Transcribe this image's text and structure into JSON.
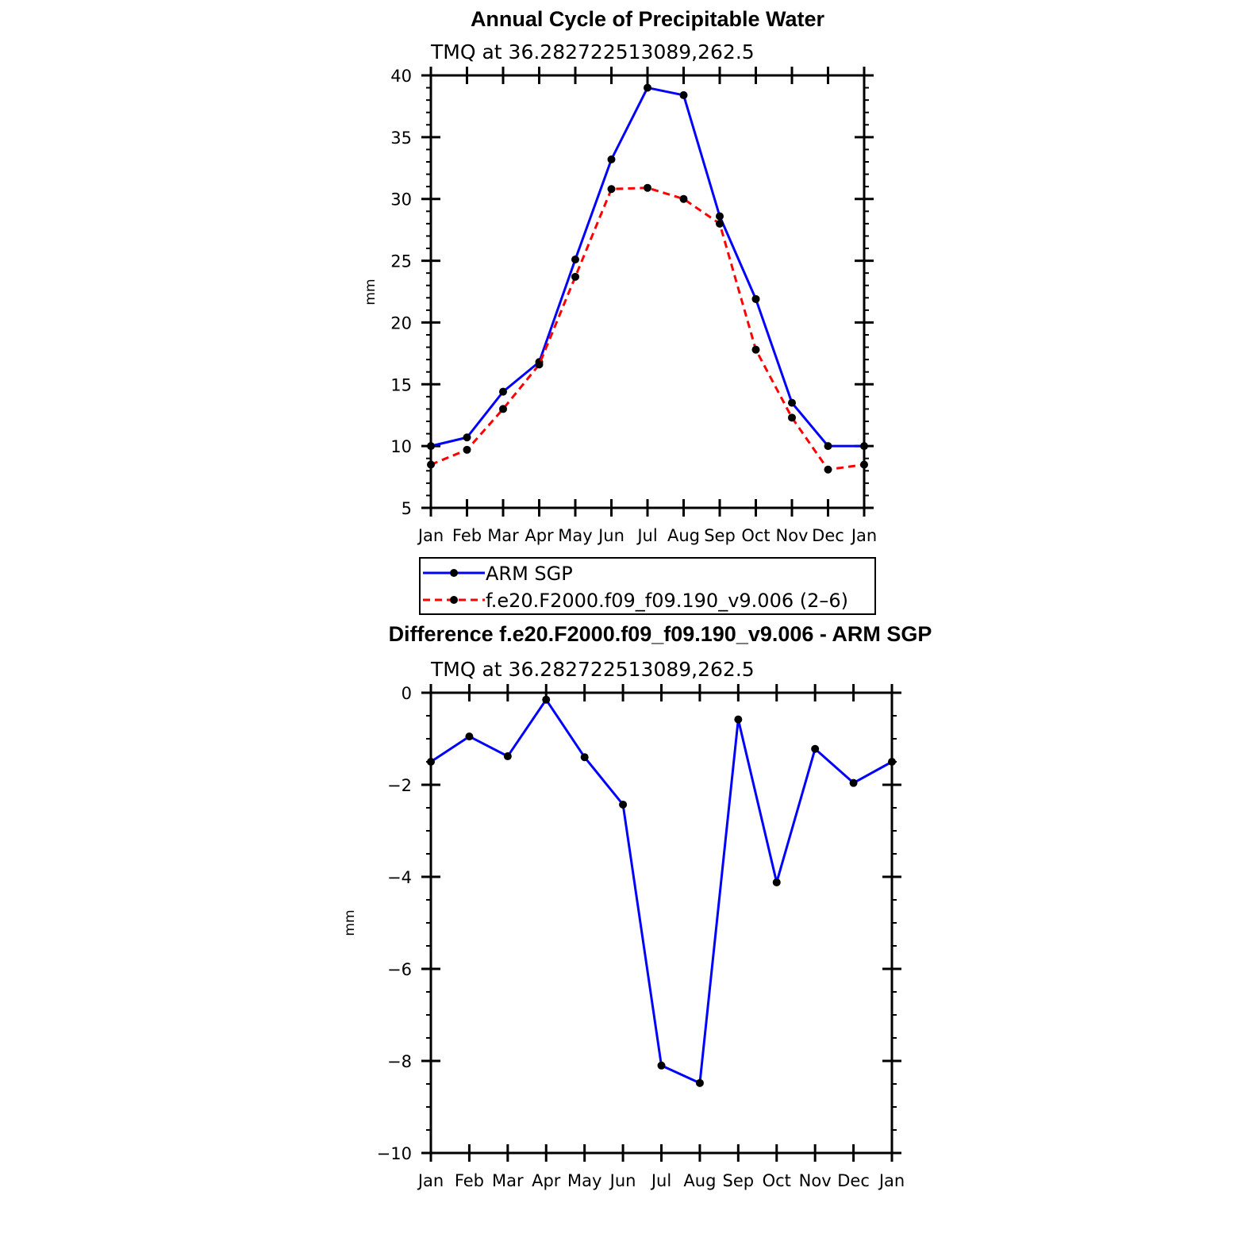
{
  "chart_data": [
    {
      "type": "line",
      "title": "Annual Cycle of Precipitable Water",
      "subtitle": "TMQ at 36.282722513089,262.5",
      "ylabel": "mm",
      "ylim": [
        5,
        40
      ],
      "yticks": [
        "5",
        "10",
        "15",
        "20",
        "25",
        "30",
        "35",
        "40"
      ],
      "categories": [
        "Jan",
        "Feb",
        "Mar",
        "Apr",
        "May",
        "Jun",
        "Jul",
        "Aug",
        "Sep",
        "Oct",
        "Nov",
        "Dec",
        "Jan"
      ],
      "series": [
        {
          "name": "ARM SGP",
          "color": "#0000ff",
          "dash": "solid",
          "marker": "filled-circle",
          "values": [
            10.0,
            10.7,
            14.4,
            16.8,
            25.1,
            33.2,
            39.0,
            38.4,
            28.6,
            21.9,
            13.5,
            10.0,
            10.0
          ]
        },
        {
          "name": "f.e20.F2000.f09_f09.190_v9.006 (2–6)",
          "color": "#ff0000",
          "dash": "dashed",
          "marker": "filled-circle",
          "values": [
            8.5,
            9.7,
            13.0,
            16.6,
            23.7,
            30.8,
            30.9,
            30.0,
            28.0,
            17.8,
            12.3,
            8.1,
            8.5
          ]
        }
      ],
      "legend_position": "below"
    },
    {
      "type": "line",
      "title": "Difference f.e20.F2000.f09_f09.190_v9.006 - ARM SGP",
      "subtitle": "TMQ at 36.282722513089,262.5",
      "ylabel": "mm",
      "ylim": [
        -10,
        0
      ],
      "yticks": [
        "−10",
        "−8",
        "−6",
        "−4",
        "−2",
        "0"
      ],
      "categories": [
        "Jan",
        "Feb",
        "Mar",
        "Apr",
        "May",
        "Jun",
        "Jul",
        "Aug",
        "Sep",
        "Oct",
        "Nov",
        "Dec",
        "Jan"
      ],
      "series": [
        {
          "color": "#0000ff",
          "dash": "solid",
          "marker": "filled-circle",
          "values": [
            -1.5,
            -0.95,
            -1.38,
            -0.15,
            -1.4,
            -2.43,
            -8.1,
            -8.48,
            -0.58,
            -4.12,
            -1.22,
            -1.96,
            -1.5
          ]
        }
      ]
    }
  ]
}
